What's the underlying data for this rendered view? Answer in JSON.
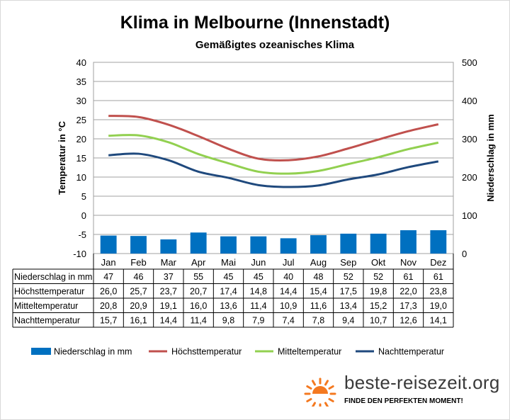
{
  "title": "Klima in Melbourne (Innenstadt)",
  "subtitle": "Gemäßigtes ozeanisches Klima",
  "colors": {
    "bar": "#0070c0",
    "max": "#c0504d",
    "mean": "#92d050",
    "night": "#1f497d",
    "grid": "#a0a0a0",
    "sun": "#f47920"
  },
  "brand": {
    "name": "beste-reisezeit.org",
    "slogan": "FINDE DEN PERFEKTEN MOMENT!",
    "logo_icon": "sun-icon"
  },
  "chart_data": {
    "type": "bar+line",
    "title": "Klima in Melbourne (Innenstadt)",
    "subtitle": "Gemäßigtes ozeanisches Klima",
    "categories": [
      "Jan",
      "Feb",
      "Mar",
      "Apr",
      "Mai",
      "Jun",
      "Jul",
      "Aug",
      "Sep",
      "Okt",
      "Nov",
      "Dez"
    ],
    "ylabel": "Temperatur in °C",
    "y2label": "Niederschlag in mm",
    "ylim": [
      -10,
      40
    ],
    "y2lim": [
      0,
      500
    ],
    "yticks": [
      -10,
      -5,
      0,
      5,
      10,
      15,
      20,
      25,
      30,
      35,
      40
    ],
    "y2ticks": [
      0,
      100,
      200,
      300,
      400,
      500
    ],
    "grid": true,
    "legend_position": "bottom",
    "series": [
      {
        "name": "Niederschlag in mm",
        "kind": "bar",
        "axis": "right",
        "values": [
          47,
          46,
          37,
          55,
          45,
          45,
          40,
          48,
          52,
          52,
          61,
          61
        ],
        "labels": [
          "47",
          "46",
          "37",
          "55",
          "45",
          "45",
          "40",
          "48",
          "52",
          "52",
          "61",
          "61"
        ]
      },
      {
        "name": "Höchsttemperatur",
        "kind": "line",
        "axis": "left",
        "values": [
          26.0,
          25.7,
          23.7,
          20.7,
          17.4,
          14.8,
          14.4,
          15.4,
          17.5,
          19.8,
          22.0,
          23.8
        ],
        "labels": [
          "26,0",
          "25,7",
          "23,7",
          "20,7",
          "17,4",
          "14,8",
          "14,4",
          "15,4",
          "17,5",
          "19,8",
          "22,0",
          "23,8"
        ]
      },
      {
        "name": "Mitteltemperatur",
        "kind": "line",
        "axis": "left",
        "values": [
          20.8,
          20.9,
          19.1,
          16.0,
          13.6,
          11.4,
          10.9,
          11.6,
          13.4,
          15.2,
          17.3,
          19.0
        ],
        "labels": [
          "20,8",
          "20,9",
          "19,1",
          "16,0",
          "13,6",
          "11,4",
          "10,9",
          "11,6",
          "13,4",
          "15,2",
          "17,3",
          "19,0"
        ]
      },
      {
        "name": "Nachttemperatur",
        "kind": "line",
        "axis": "left",
        "values": [
          15.7,
          16.1,
          14.4,
          11.4,
          9.8,
          7.9,
          7.4,
          7.8,
          9.4,
          10.7,
          12.6,
          14.1
        ],
        "labels": [
          "15,7",
          "16,1",
          "14,4",
          "11,4",
          "9,8",
          "7,9",
          "7,4",
          "7,8",
          "9,4",
          "10,7",
          "12,6",
          "14,1"
        ]
      }
    ]
  }
}
